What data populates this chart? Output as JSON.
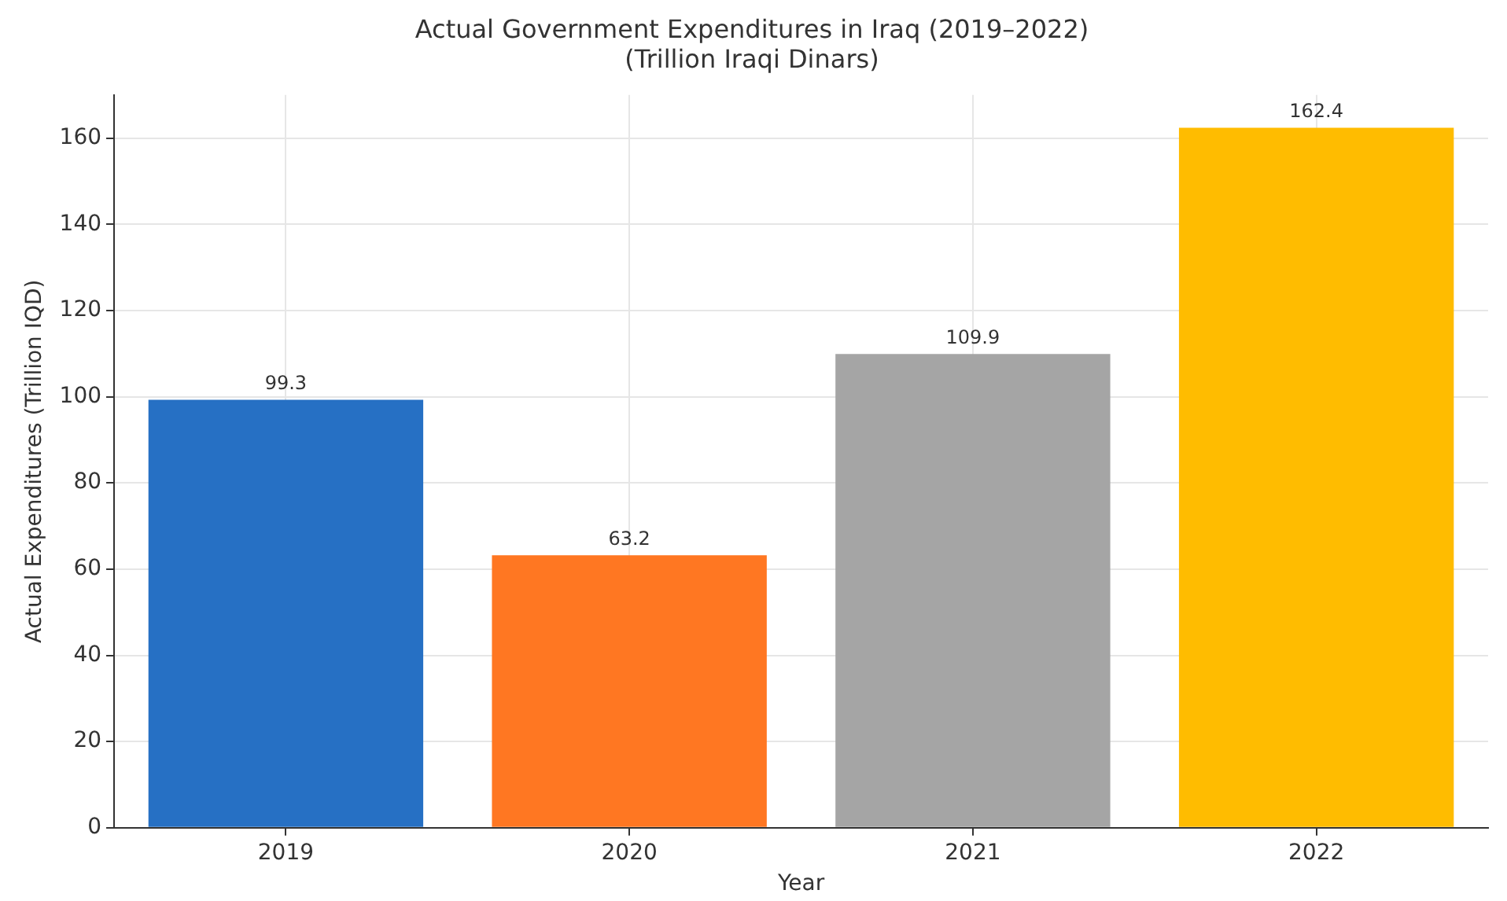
{
  "chart_data": {
    "type": "bar",
    "title": "Actual Government Expenditures in Iraq (2019–2022)",
    "subtitle": "(Trillion Iraqi Dinars)",
    "xlabel": "Year",
    "ylabel": "Actual Expenditures (Trillion IQD)",
    "categories": [
      "2019",
      "2020",
      "2021",
      "2022"
    ],
    "values": [
      99.3,
      63.2,
      109.9,
      162.4
    ],
    "colors": [
      "#2670c4",
      "#ff7722",
      "#a5a5a5",
      "#ffbc00"
    ],
    "ylim": [
      0,
      170
    ],
    "yticks": [
      0,
      20,
      40,
      60,
      80,
      100,
      120,
      140,
      160
    ],
    "grid": true,
    "data_labels": true,
    "legend": false
  }
}
